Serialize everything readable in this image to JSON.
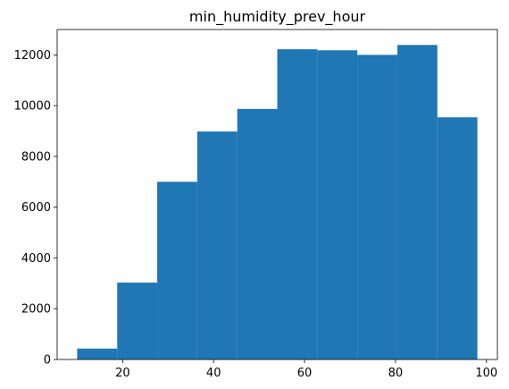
{
  "chart_data": {
    "type": "bar",
    "title": "min_humidity_prev_hour",
    "xlabel": "",
    "ylabel": "",
    "bins": [
      [
        10.0,
        18.8
      ],
      [
        18.8,
        27.6
      ],
      [
        27.6,
        36.4
      ],
      [
        36.4,
        45.2
      ],
      [
        45.2,
        54.0
      ],
      [
        54.0,
        62.8
      ],
      [
        62.8,
        71.6
      ],
      [
        71.6,
        80.4
      ],
      [
        80.4,
        89.2
      ],
      [
        89.2,
        98.0
      ]
    ],
    "values": [
      430,
      3030,
      7000,
      8980,
      9870,
      12220,
      12180,
      12000,
      12390,
      9540
    ],
    "xlim": [
      5.6,
      102.4
    ],
    "ylim": [
      0,
      12999
    ],
    "xticks": [
      20,
      40,
      60,
      80,
      100
    ],
    "xtick_labels": [
      "20",
      "40",
      "60",
      "80",
      "100"
    ],
    "yticks": [
      0,
      2000,
      4000,
      6000,
      8000,
      10000,
      12000
    ],
    "ytick_labels": [
      "0",
      "2000",
      "4000",
      "6000",
      "8000",
      "10000",
      "12000"
    ],
    "bar_color": "#1f77b4",
    "grid": false,
    "legend": "none"
  }
}
